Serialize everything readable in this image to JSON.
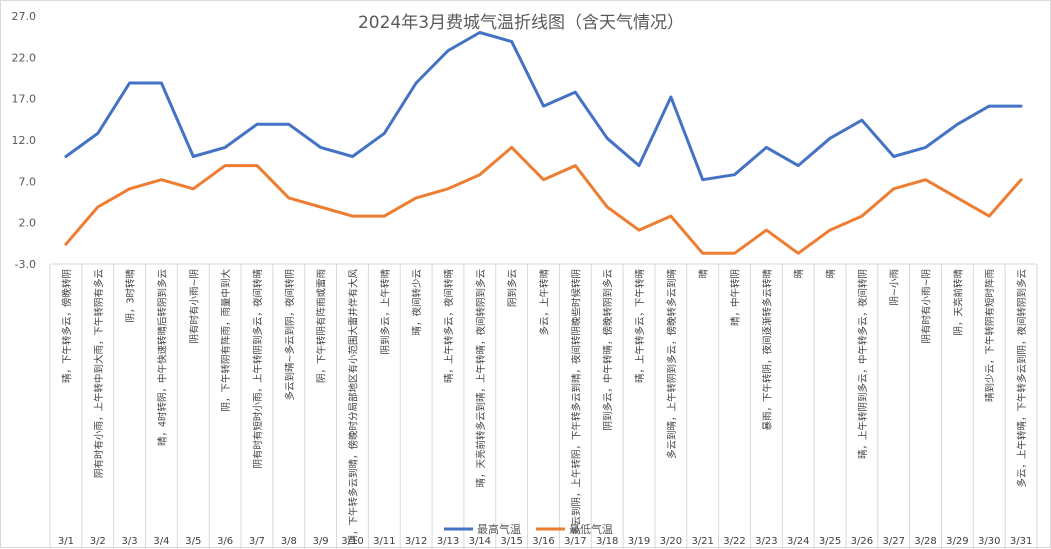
{
  "chart_data": {
    "type": "line",
    "title": "2024年3月费城气温折线图（含天气情况）",
    "categories": [
      "3/1",
      "3/2",
      "3/3",
      "3/4",
      "3/5",
      "3/6",
      "3/7",
      "3/8",
      "3/9",
      "3/10",
      "3/11",
      "3/12",
      "3/13",
      "3/14",
      "3/15",
      "3/16",
      "3/17",
      "3/18",
      "3/19",
      "3/20",
      "3/21",
      "3/22",
      "3/23",
      "3/24",
      "3/25",
      "3/26",
      "3/27",
      "3/28",
      "3/29",
      "3/30",
      "3/31"
    ],
    "weather": [
      "晴，下午转多云，傍晚转阴",
      "阴有时有小雨，上午转中到大雨，下午转阴有多云",
      "阴，3时转晴",
      "晴，4时转阴，中午快速转晴后转阴到多云",
      "阴有时有小雨~阴",
      "阴，下午转阴有阵雨，雨量中到大",
      "阴有时有短时小雨，上午转阴到多云，夜间转晴",
      "多云到晴~多云到阴，夜间转阴",
      "阴，下午转阴有阵雨或雷雨",
      "阴，下午转多云到晴，傍晚时分局部地区有小范围大雷并伴有大风",
      "阴到多云，上午转晴",
      "晴，夜间转少云",
      "晴，上午转多云，夜间转晴",
      "晴，天亮前转多云到晴，上午转晴，夜间转阴到多云",
      "阴到多云",
      "多云，上午转晴",
      "多云到阴，上午转阴，下午转多云到晴，夜间转阴晚些时候转阴",
      "阴到多云，中午转晴，傍晚转阴到多云",
      "晴，上午转多云，下午转晴",
      "多云到晴，上午转阴到多云，傍晚转多云到晴",
      "晴",
      "晴，中午转阴",
      "暴雨，下午转阴，夜间逐渐转多云转晴",
      "晴",
      "晴",
      "晴，上午转阴到多云，中午转多云，夜间转阴",
      "阴~小雨",
      "阴有时有小雨~阴",
      "阴，天亮前转晴",
      "晴到少云，下午转阴有短时阵雨",
      "多云，上午转晴，下午转多云到阴，夜间转阴到多云"
    ],
    "series": [
      {
        "name": "最高气温",
        "color": "#4472c4",
        "values": [
          10,
          12.8,
          18.9,
          18.9,
          10,
          11.1,
          13.9,
          13.9,
          11.1,
          10,
          12.8,
          18.9,
          22.8,
          25,
          23.9,
          16.1,
          17.8,
          12.2,
          8.9,
          17.2,
          7.2,
          7.8,
          11.1,
          8.9,
          12.2,
          14.4,
          10,
          11.1,
          13.9,
          16.1,
          16.1
        ]
      },
      {
        "name": "最低气温",
        "color": "#ed7d31",
        "values": [
          -0.6,
          3.9,
          6.1,
          7.2,
          6.1,
          8.9,
          8.9,
          5,
          3.9,
          2.8,
          2.8,
          5,
          6.1,
          7.8,
          11.1,
          7.2,
          8.9,
          3.9,
          1.1,
          2.8,
          -1.7,
          -1.7,
          1.1,
          -1.7,
          1.1,
          2.8,
          6.1,
          7.2,
          5,
          2.8,
          7.2
        ]
      }
    ],
    "yticks": [
      "27.0",
      "22.0",
      "17.0",
      "12.0",
      "7.0",
      "2.0",
      "-3.0"
    ],
    "ylim": [
      -3,
      27
    ],
    "grid": false,
    "legend": "bottom"
  }
}
